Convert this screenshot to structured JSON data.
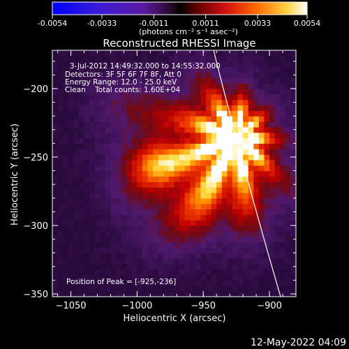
{
  "colorbar": {
    "tick_labels": [
      "-0.0054",
      "-0.0033",
      "-0.0011",
      "0.0011",
      "0.0033",
      "0.0054"
    ],
    "unit_label": "(photons cm⁻² s⁻¹ asec⁻²)"
  },
  "chart_data": {
    "type": "heatmap",
    "title": "Reconstructed RHESSI Image",
    "xlabel": "Heliocentric X (arcsec)",
    "ylabel": "Heliocentric Y (arcsec)",
    "xlim": [
      -1064,
      -880
    ],
    "ylim": [
      -352,
      -172
    ],
    "x_ticks": [
      -1050,
      -1000,
      -950,
      -900
    ],
    "y_ticks": [
      -200,
      -250,
      -300,
      -350
    ],
    "x_tick_labels": [
      "−1050",
      "−1000",
      "−950",
      "−900"
    ],
    "y_tick_labels": [
      "−200",
      "−250",
      "−300",
      "−350"
    ],
    "colorbar_range": [
      -0.0054,
      0.0054
    ],
    "peak_position": [
      -925,
      -236
    ],
    "grid": false,
    "annotations": [
      "3-Jul-2012 14:49:32.000 to 14:55:32.000",
      "Detectors: 3F 5F 6F 7F 8F, Att 0",
      "Energy Range: 12.0 - 25.0 keV",
      "Clean    Total counts: 1.60E+04",
      "Position of Peak = [-925,-236]"
    ]
  },
  "footer": {
    "timestamp": "12-May-2022 04:09"
  }
}
